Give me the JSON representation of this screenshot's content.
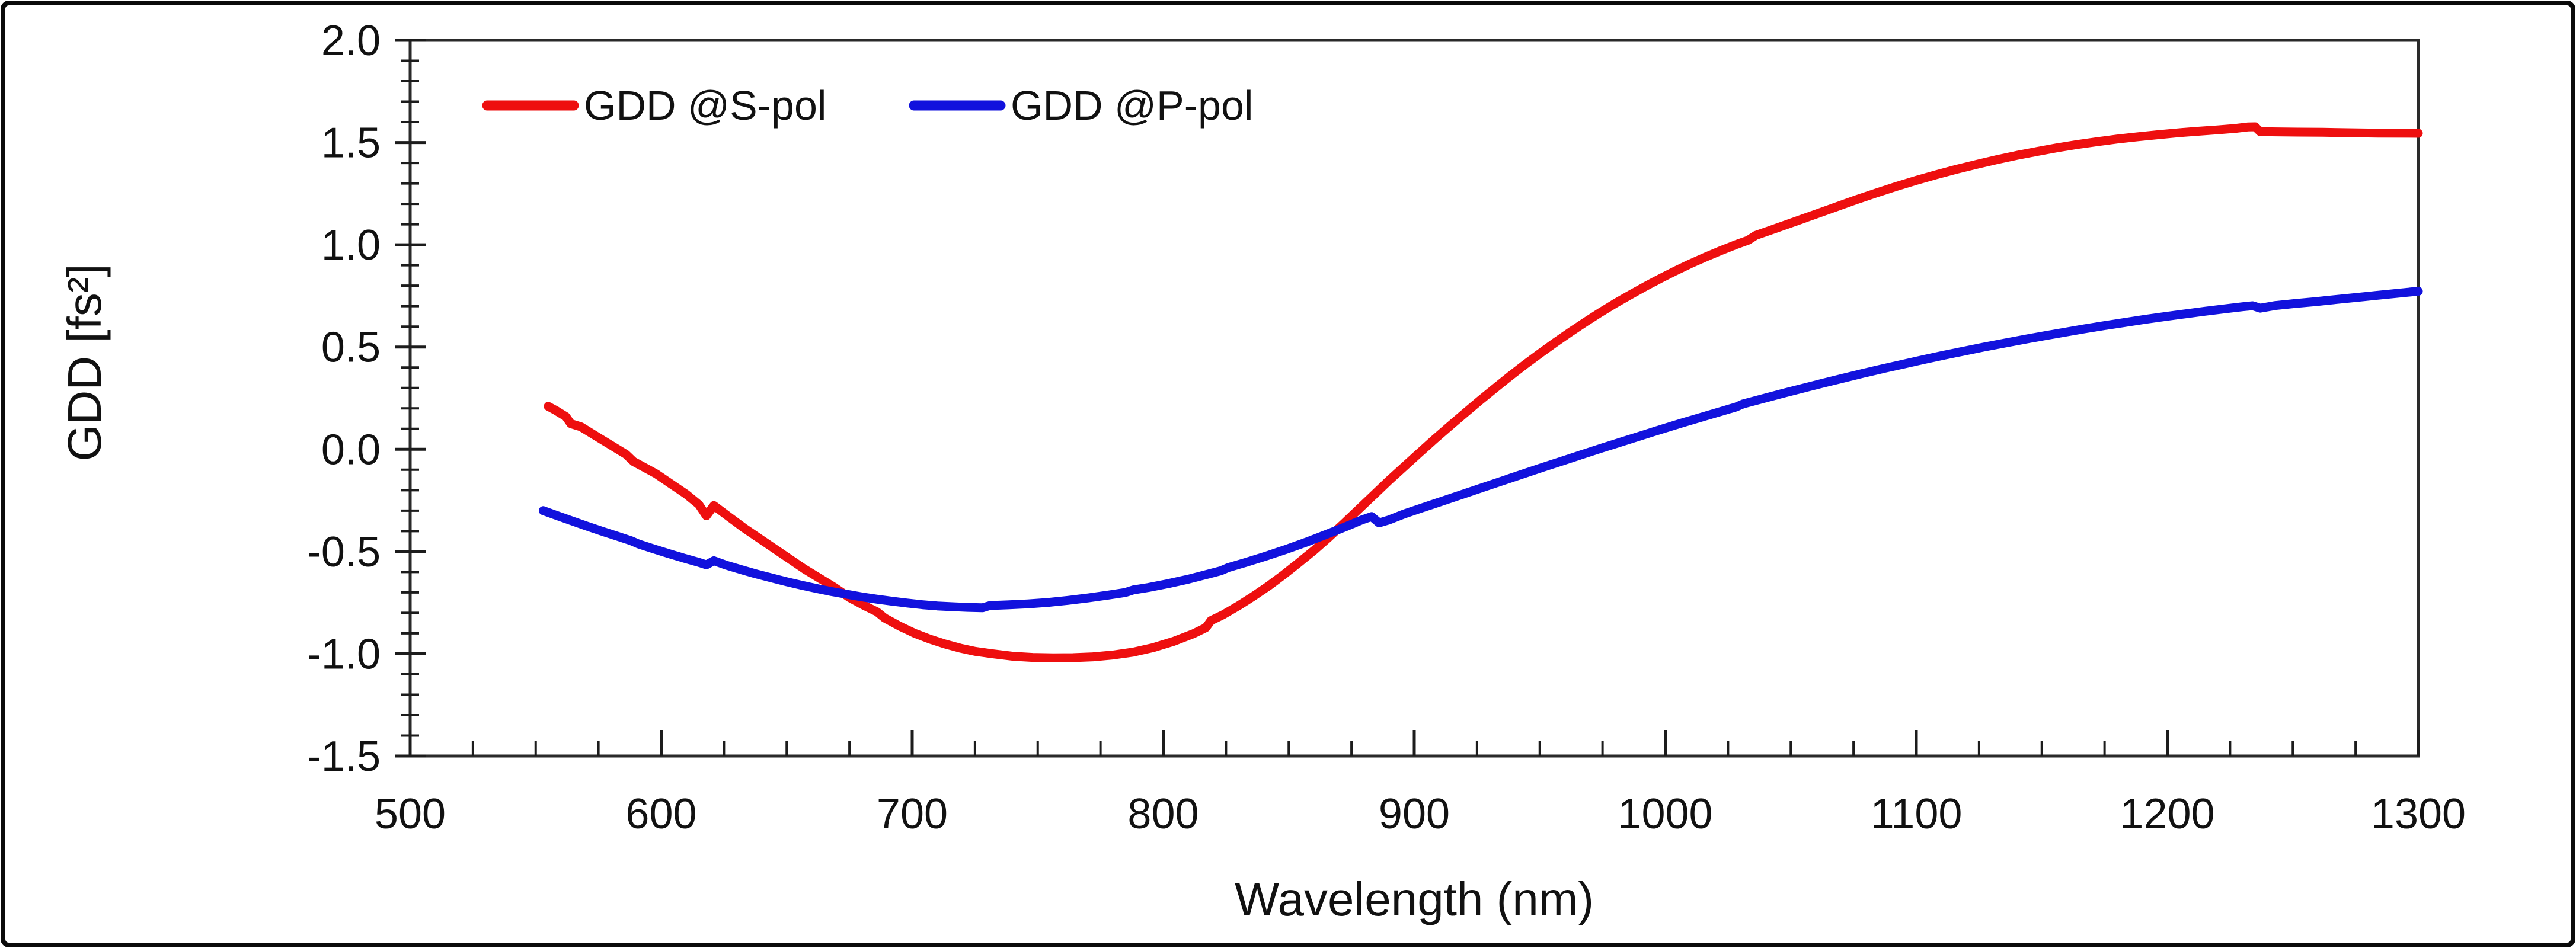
{
  "figure": {
    "background": "#ffffff",
    "border_color": "#0a0a0a"
  },
  "chart_data": {
    "type": "line",
    "title": "",
    "xlabel": "Wavelength (nm)",
    "ylabel": "GDD [fs²]",
    "xlim": [
      500,
      1300
    ],
    "ylim": [
      -1.5,
      2.0
    ],
    "grid": false,
    "legend_position": "top-left-inside",
    "x_major_ticks": [
      500,
      600,
      700,
      800,
      900,
      1000,
      1100,
      1200,
      1300
    ],
    "x_tick_labels": [
      "500",
      "600",
      "700",
      "800",
      "900",
      "1000",
      "1100",
      "1200",
      "1300"
    ],
    "x_minor_step": 25,
    "y_major_ticks": [
      -1.5,
      -1.0,
      -0.5,
      0.0,
      0.5,
      1.0,
      1.5,
      2.0
    ],
    "y_tick_labels": [
      "-1.5",
      "-1.0",
      "-0.5",
      "0.0",
      "0.5",
      "1.0",
      "1.5",
      "2.0"
    ],
    "y_minor_step": 0.1,
    "series": [
      {
        "name": "GDD @S-pol",
        "color": "#ee0f0f",
        "points": [
          [
            555,
            0.21
          ],
          [
            558,
            0.19
          ],
          [
            562,
            0.16
          ],
          [
            564,
            0.125
          ],
          [
            568,
            0.11
          ],
          [
            574,
            0.065
          ],
          [
            580,
            0.02
          ],
          [
            586,
            -0.025
          ],
          [
            589,
            -0.06
          ],
          [
            592,
            -0.08
          ],
          [
            598,
            -0.12
          ],
          [
            604,
            -0.17
          ],
          [
            610,
            -0.22
          ],
          [
            615,
            -0.27
          ],
          [
            618,
            -0.325
          ],
          [
            621,
            -0.275
          ],
          [
            627,
            -0.33
          ],
          [
            633,
            -0.385
          ],
          [
            639,
            -0.435
          ],
          [
            645,
            -0.485
          ],
          [
            651,
            -0.535
          ],
          [
            657,
            -0.585
          ],
          [
            663,
            -0.63
          ],
          [
            669,
            -0.675
          ],
          [
            675,
            -0.725
          ],
          [
            681,
            -0.765
          ],
          [
            686,
            -0.795
          ],
          [
            689,
            -0.825
          ],
          [
            695,
            -0.865
          ],
          [
            701,
            -0.9
          ],
          [
            707,
            -0.928
          ],
          [
            713,
            -0.952
          ],
          [
            719,
            -0.972
          ],
          [
            725,
            -0.988
          ],
          [
            732,
            -1.0
          ],
          [
            740,
            -1.012
          ],
          [
            748,
            -1.018
          ],
          [
            756,
            -1.02
          ],
          [
            764,
            -1.019
          ],
          [
            772,
            -1.015
          ],
          [
            780,
            -1.006
          ],
          [
            788,
            -0.992
          ],
          [
            796,
            -0.97
          ],
          [
            804,
            -0.94
          ],
          [
            812,
            -0.902
          ],
          [
            817,
            -0.872
          ],
          [
            819,
            -0.838
          ],
          [
            824,
            -0.808
          ],
          [
            830,
            -0.765
          ],
          [
            836,
            -0.718
          ],
          [
            842,
            -0.668
          ],
          [
            848,
            -0.613
          ],
          [
            854,
            -0.555
          ],
          [
            860,
            -0.495
          ],
          [
            866,
            -0.43
          ],
          [
            872,
            -0.362
          ],
          [
            878,
            -0.292
          ],
          [
            884,
            -0.222
          ],
          [
            890,
            -0.152
          ],
          [
            896,
            -0.085
          ],
          [
            902,
            -0.018
          ],
          [
            908,
            0.048
          ],
          [
            914,
            0.112
          ],
          [
            920,
            0.175
          ],
          [
            926,
            0.237
          ],
          [
            932,
            0.297
          ],
          [
            938,
            0.356
          ],
          [
            944,
            0.413
          ],
          [
            950,
            0.468
          ],
          [
            956,
            0.521
          ],
          [
            962,
            0.572
          ],
          [
            968,
            0.621
          ],
          [
            974,
            0.668
          ],
          [
            980,
            0.713
          ],
          [
            986,
            0.755
          ],
          [
            992,
            0.796
          ],
          [
            998,
            0.835
          ],
          [
            1004,
            0.872
          ],
          [
            1010,
            0.907
          ],
          [
            1016,
            0.94
          ],
          [
            1022,
            0.971
          ],
          [
            1028,
            1.0
          ],
          [
            1033,
            1.022
          ],
          [
            1036,
            1.046
          ],
          [
            1044,
            1.08
          ],
          [
            1052,
            1.115
          ],
          [
            1060,
            1.15
          ],
          [
            1068,
            1.185
          ],
          [
            1076,
            1.22
          ],
          [
            1084,
            1.253
          ],
          [
            1092,
            1.285
          ],
          [
            1100,
            1.315
          ],
          [
            1108,
            1.343
          ],
          [
            1116,
            1.369
          ],
          [
            1124,
            1.393
          ],
          [
            1132,
            1.416
          ],
          [
            1140,
            1.437
          ],
          [
            1148,
            1.456
          ],
          [
            1156,
            1.474
          ],
          [
            1164,
            1.49
          ],
          [
            1172,
            1.504
          ],
          [
            1180,
            1.517
          ],
          [
            1188,
            1.528
          ],
          [
            1196,
            1.538
          ],
          [
            1204,
            1.547
          ],
          [
            1212,
            1.555
          ],
          [
            1220,
            1.562
          ],
          [
            1227,
            1.569
          ],
          [
            1232,
            1.576
          ],
          [
            1235,
            1.577
          ],
          [
            1237,
            1.553
          ],
          [
            1244,
            1.552
          ],
          [
            1252,
            1.551
          ],
          [
            1262,
            1.55
          ],
          [
            1272,
            1.548
          ],
          [
            1284,
            1.546
          ],
          [
            1300,
            1.545
          ]
        ]
      },
      {
        "name": "GDD @P-pol",
        "color": "#1212dd",
        "points": [
          [
            553,
            -0.3
          ],
          [
            558,
            -0.322
          ],
          [
            564,
            -0.348
          ],
          [
            570,
            -0.374
          ],
          [
            576,
            -0.399
          ],
          [
            582,
            -0.423
          ],
          [
            588,
            -0.447
          ],
          [
            591,
            -0.463
          ],
          [
            597,
            -0.487
          ],
          [
            603,
            -0.51
          ],
          [
            609,
            -0.532
          ],
          [
            615,
            -0.553
          ],
          [
            618,
            -0.565
          ],
          [
            621,
            -0.545
          ],
          [
            626,
            -0.567
          ],
          [
            632,
            -0.589
          ],
          [
            638,
            -0.61
          ],
          [
            644,
            -0.629
          ],
          [
            650,
            -0.648
          ],
          [
            656,
            -0.665
          ],
          [
            662,
            -0.681
          ],
          [
            668,
            -0.696
          ],
          [
            674,
            -0.709
          ],
          [
            680,
            -0.722
          ],
          [
            686,
            -0.733
          ],
          [
            692,
            -0.743
          ],
          [
            698,
            -0.752
          ],
          [
            704,
            -0.76
          ],
          [
            710,
            -0.766
          ],
          [
            716,
            -0.77
          ],
          [
            722,
            -0.773
          ],
          [
            728,
            -0.775
          ],
          [
            731,
            -0.764
          ],
          [
            738,
            -0.761
          ],
          [
            746,
            -0.756
          ],
          [
            754,
            -0.749
          ],
          [
            762,
            -0.739
          ],
          [
            770,
            -0.727
          ],
          [
            778,
            -0.713
          ],
          [
            785,
            -0.7
          ],
          [
            788,
            -0.688
          ],
          [
            794,
            -0.676
          ],
          [
            802,
            -0.657
          ],
          [
            810,
            -0.635
          ],
          [
            818,
            -0.61
          ],
          [
            823,
            -0.594
          ],
          [
            826,
            -0.578
          ],
          [
            833,
            -0.553
          ],
          [
            841,
            -0.522
          ],
          [
            849,
            -0.489
          ],
          [
            857,
            -0.454
          ],
          [
            865,
            -0.416
          ],
          [
            873,
            -0.377
          ],
          [
            879,
            -0.346
          ],
          [
            883,
            -0.329
          ],
          [
            886,
            -0.36
          ],
          [
            890,
            -0.345
          ],
          [
            896,
            -0.316
          ],
          [
            903,
            -0.287
          ],
          [
            911,
            -0.254
          ],
          [
            919,
            -0.221
          ],
          [
            927,
            -0.188
          ],
          [
            935,
            -0.155
          ],
          [
            943,
            -0.122
          ],
          [
            951,
            -0.089
          ],
          [
            959,
            -0.057
          ],
          [
            967,
            -0.025
          ],
          [
            975,
            0.007
          ],
          [
            983,
            0.038
          ],
          [
            991,
            0.069
          ],
          [
            999,
            0.1
          ],
          [
            1007,
            0.13
          ],
          [
            1015,
            0.159
          ],
          [
            1023,
            0.188
          ],
          [
            1028,
            0.206
          ],
          [
            1031,
            0.222
          ],
          [
            1039,
            0.248
          ],
          [
            1047,
            0.274
          ],
          [
            1055,
            0.299
          ],
          [
            1063,
            0.324
          ],
          [
            1071,
            0.348
          ],
          [
            1079,
            0.372
          ],
          [
            1087,
            0.395
          ],
          [
            1095,
            0.417
          ],
          [
            1103,
            0.439
          ],
          [
            1111,
            0.46
          ],
          [
            1119,
            0.48
          ],
          [
            1127,
            0.5
          ],
          [
            1135,
            0.519
          ],
          [
            1143,
            0.537
          ],
          [
            1151,
            0.555
          ],
          [
            1159,
            0.572
          ],
          [
            1167,
            0.589
          ],
          [
            1175,
            0.605
          ],
          [
            1183,
            0.62
          ],
          [
            1191,
            0.635
          ],
          [
            1199,
            0.649
          ],
          [
            1207,
            0.662
          ],
          [
            1215,
            0.675
          ],
          [
            1223,
            0.687
          ],
          [
            1230,
            0.697
          ],
          [
            1234,
            0.702
          ],
          [
            1237,
            0.69
          ],
          [
            1243,
            0.703
          ],
          [
            1251,
            0.713
          ],
          [
            1259,
            0.722
          ],
          [
            1267,
            0.732
          ],
          [
            1275,
            0.742
          ],
          [
            1283,
            0.752
          ],
          [
            1291,
            0.762
          ],
          [
            1300,
            0.773
          ]
        ]
      }
    ]
  },
  "legend": {
    "s_pol_label": "GDD @S-pol",
    "p_pol_label": "GDD @P-pol"
  }
}
